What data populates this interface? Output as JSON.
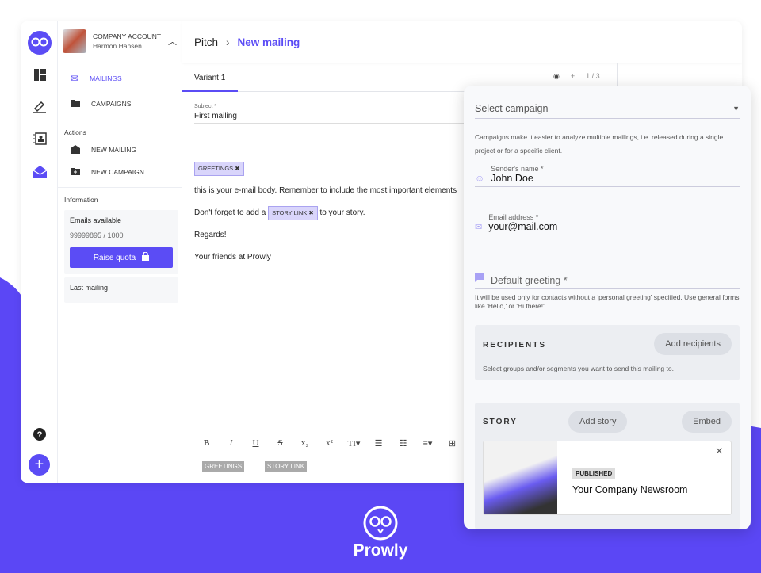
{
  "colors": {
    "accent": "#5b4cf5",
    "background_purple": "#5b47f5"
  },
  "sidebar": {
    "account_type": "COMPANY ACCOUNT",
    "account_name": "Harmon Hansen",
    "nav": [
      {
        "label": "MAILINGS",
        "icon": "mail-icon",
        "active": true
      },
      {
        "label": "CAMPAIGNS",
        "icon": "folder-icon"
      }
    ],
    "actions_title": "Actions",
    "actions": [
      {
        "label": "NEW MAILING",
        "icon": "open-mail-icon"
      },
      {
        "label": "NEW CAMPAIGN",
        "icon": "folder-plus-icon"
      }
    ],
    "info_title": "Information",
    "emails_label": "Emails available",
    "emails_value": "99999895 / 1000",
    "raise_quota": "Raise quota",
    "last_mailing": "Last mailing"
  },
  "rail": [
    "logo-owl-icon",
    "dashboard-icon",
    "edit-icon",
    "contacts-icon",
    "mailings-icon",
    "help-icon",
    "add-icon"
  ],
  "header": {
    "crumb": "Pitch",
    "sep": "›",
    "title": "New mailing"
  },
  "tabs": {
    "variant": "Variant 1",
    "counter": "1 / 3",
    "plus": "+"
  },
  "editor": {
    "subject_label": "Subject *",
    "subject_value": "First mailing",
    "chip_greetings": "GREETINGS ✖",
    "line1": "this is your e-mail body. Remember to include the most important elements",
    "line2a": "Don't forget to add a",
    "chip_story": "STORY LINK ✖",
    "line2b": "to your story.",
    "line3": "Regards!",
    "line4": "Your friends at Prowly"
  },
  "toolbar": {
    "buttons": [
      "B",
      "I",
      "U",
      "S",
      "x₂",
      "x²",
      "TI▾",
      "☰",
      "☷",
      "≡▾",
      "⊞"
    ],
    "chips": [
      "GREETINGS",
      "STORY LINK"
    ]
  },
  "panel": {
    "select_campaign": "Select campaign",
    "campaign_note": "Campaigns make it easier to analyze multiple mailings, i.e. released during a single project or for a specific client.",
    "sender_label": "Sender's name *",
    "sender_value": "John Doe",
    "email_label": "Email address *",
    "email_value": "your@mail.com",
    "greeting_placeholder": "Default greeting *",
    "greeting_note": "It will be used only for contacts without a 'personal greeting' specified. Use general forms like 'Hello,' or 'Hi there!'.",
    "recipients_title": "RECIPIENTS",
    "add_recipients": "Add recipients",
    "recipients_note": "Select groups and/or segments you want to send this mailing to.",
    "story_title": "STORY",
    "add_story": "Add story",
    "embed": "Embed",
    "story_status": "PUBLISHED",
    "story_name": "Your Company Newsroom",
    "close": "×"
  },
  "brand": "Prowly"
}
